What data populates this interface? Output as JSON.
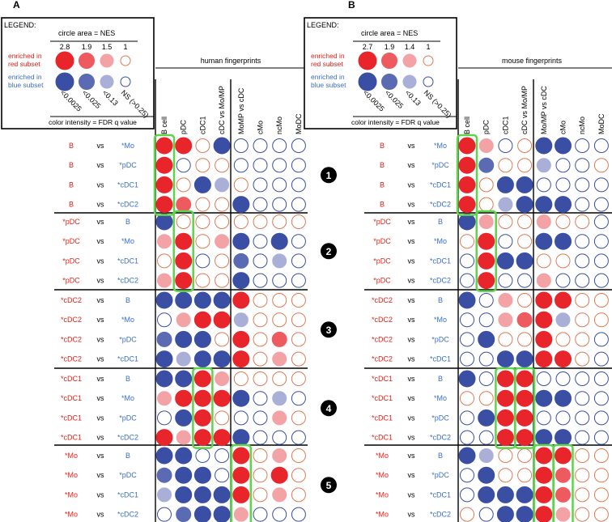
{
  "colors": {
    "red_strong": "#e8252b",
    "red_mid": "#ed5a60",
    "red_light": "#f3a2a5",
    "blue_strong": "#3a4fa3",
    "blue_mid": "#5b6bb3",
    "blue_light": "#a9afd6",
    "open_red": "#e07a55",
    "open_blue": "#3a4fa3",
    "red_text": "#e2231a",
    "blue_text": "#3b6fc4",
    "highlight": "#5ed44a"
  },
  "panels": [
    {
      "letter": "A",
      "legend": {
        "title": "LEGEND:",
        "circle_area_label": "circle area = NES",
        "nes_values": [
          "2.8",
          "1.9",
          "1.5",
          "1"
        ],
        "red_label": [
          "enriched in",
          "red subset"
        ],
        "blue_label": [
          "enriched in",
          "blue subset"
        ],
        "fdr_values": [
          "<0.0025",
          "<0.025",
          "<0.13",
          "NS (>0.25)"
        ],
        "color_label": "color intensity = FDR q value"
      },
      "fingerprint_title": "human fingerprints",
      "columns": [
        "B cell",
        "pDC",
        "cDC1",
        "cDC vs Mo/MP",
        "MoMP vs cDC",
        "cMo",
        "ncMo",
        "MoDC"
      ],
      "groups": [
        {
          "label": "❶",
          "rows": [
            {
              "left": "B",
              "right": "*Mo",
              "cells": [
                "R3",
                "R3",
                "r1",
                "B3",
                "b1",
                "b1",
                "b1",
                "b1"
              ]
            },
            {
              "left": "B",
              "right": "*pDC",
              "cells": [
                "R3",
                "b1",
                "r1",
                "r1",
                "b1",
                "b1",
                "b1",
                "b1"
              ]
            },
            {
              "left": "B",
              "right": "*cDC1",
              "cells": [
                "R3",
                "r1",
                "B3",
                "B1",
                "r1",
                "b1",
                "b1",
                "b1"
              ]
            },
            {
              "left": "B",
              "right": "*cDC2",
              "cells": [
                "R3",
                "R2",
                "r1",
                "r1",
                "B3",
                "b1",
                "b1",
                "b1"
              ]
            }
          ]
        },
        {
          "label": "❷",
          "rows": [
            {
              "left": "*pDC",
              "right": "B",
              "cells": [
                "B3",
                "r1",
                "r1",
                "r1",
                "r1",
                "r1",
                "r1",
                "r1"
              ]
            },
            {
              "left": "*pDC",
              "right": "*Mo",
              "cells": [
                "R1",
                "R3",
                "r1",
                "R1",
                "B3",
                "b1",
                "B3",
                "b1"
              ]
            },
            {
              "left": "*pDC",
              "right": "*cDC1",
              "cells": [
                "r1",
                "R3",
                "b1",
                "r1",
                "B2",
                "b1",
                "B1",
                "b1"
              ]
            },
            {
              "left": "*pDC",
              "right": "*cDC2",
              "cells": [
                "R1",
                "R3",
                "r1",
                "r1",
                "B3",
                "b1",
                "b1",
                "b1"
              ]
            }
          ]
        },
        {
          "label": "❸",
          "rows": [
            {
              "left": "*cDC2",
              "right": "B",
              "cells": [
                "B3",
                "B3",
                "B3",
                "B3",
                "R3",
                "r1",
                "r1",
                "r1"
              ]
            },
            {
              "left": "*cDC2",
              "right": "*Mo",
              "cells": [
                "b1",
                "R1",
                "R3",
                "R3",
                "B1",
                "r1",
                "r1",
                "r1"
              ]
            },
            {
              "left": "*cDC2",
              "right": "*pDC",
              "cells": [
                "B2",
                "B3",
                "B3",
                "r1",
                "R3",
                "r1",
                "R2",
                "r1"
              ]
            },
            {
              "left": "*cDC2",
              "right": "*cDC1",
              "cells": [
                "B3",
                "B1",
                "B3",
                "B3",
                "R3",
                "r1",
                "R1",
                "r1"
              ]
            }
          ]
        },
        {
          "label": "❹",
          "rows": [
            {
              "left": "*cDC1",
              "right": "B",
              "cells": [
                "B3",
                "B3",
                "R3",
                "R1",
                "r1",
                "r1",
                "r1",
                "r1"
              ]
            },
            {
              "left": "*cDC1",
              "right": "*Mo",
              "cells": [
                "R1",
                "R3",
                "R3",
                "R3",
                "B3",
                "b1",
                "B1",
                "b1"
              ]
            },
            {
              "left": "*cDC1",
              "right": "*pDC",
              "cells": [
                "b1",
                "B3",
                "R3",
                "r1",
                "b1",
                "b1",
                "R1",
                "r1"
              ]
            },
            {
              "left": "*cDC1",
              "right": "*cDC2",
              "cells": [
                "R3",
                "R1",
                "R3",
                "R3",
                "B3",
                "b1",
                "b1",
                "b1"
              ]
            }
          ]
        },
        {
          "label": "❺",
          "rows": [
            {
              "left": "*Mo",
              "right": "B",
              "cells": [
                "B3",
                "B3",
                "b1",
                "b1",
                "R3",
                "r1",
                "R1",
                "r1"
              ]
            },
            {
              "left": "*Mo",
              "right": "*pDC",
              "cells": [
                "B2",
                "B3",
                "B3",
                "b1",
                "R3",
                "r1",
                "R3",
                "r1"
              ]
            },
            {
              "left": "*Mo",
              "right": "*cDC1",
              "cells": [
                "B1",
                "B3",
                "B3",
                "B3",
                "R3",
                "r1",
                "R1",
                "r1"
              ]
            },
            {
              "left": "*Mo",
              "right": "*cDC2",
              "cells": [
                "b1",
                "B2",
                "B3",
                "B3",
                "R1",
                "b1",
                "b1",
                "b1"
              ]
            }
          ]
        }
      ],
      "highlights": [
        {
          "group": 0,
          "col": 0
        },
        {
          "group": 1,
          "col": 1
        },
        {
          "group": 3,
          "col": 2
        },
        {
          "group": 4,
          "col": 4
        }
      ]
    },
    {
      "letter": "B",
      "legend": {
        "title": "LEGEND:",
        "circle_area_label": "circle area = NES",
        "nes_values": [
          "2.7",
          "1.9",
          "1.4",
          "1"
        ],
        "red_label": [
          "enriched in",
          "red subset"
        ],
        "blue_label": [
          "enriched in",
          "blue subset"
        ],
        "fdr_values": [
          "<0.0025",
          "<0.025",
          "<0.13",
          "NS (>0.25)"
        ],
        "color_label": "color intensity = FDR q value"
      },
      "fingerprint_title": "mouse fingerprints",
      "columns": [
        "B cell",
        "pDC",
        "cDC1",
        "cDC vs Mo/MP",
        "Mo/MP vs cDC",
        "cMo",
        "ncMo",
        "MoDC"
      ],
      "groups": [
        {
          "label": "",
          "rows": [
            {
              "left": "B",
              "right": "*Mo",
              "cells": [
                "R3",
                "R1",
                "b1",
                "r1",
                "B3",
                "B3",
                "b1",
                "b1"
              ]
            },
            {
              "left": "B",
              "right": "*pDC",
              "cells": [
                "R3",
                "B2",
                "r1",
                "r1",
                "B1",
                "b1",
                "b1",
                "r1"
              ]
            },
            {
              "left": "B",
              "right": "*cDC1",
              "cells": [
                "R3",
                "r1",
                "B3",
                "B3",
                "b1",
                "b1",
                "b1",
                "b1"
              ]
            },
            {
              "left": "B",
              "right": "*cDC2",
              "cells": [
                "R3",
                "r1",
                "B1",
                "B3",
                "B3",
                "B3",
                "b1",
                "b1"
              ]
            }
          ]
        },
        {
          "label": "",
          "rows": [
            {
              "left": "*pDC",
              "right": "B",
              "cells": [
                "B3",
                "R1",
                "r1",
                "r1",
                "R1",
                "r1",
                "r1",
                "b1"
              ]
            },
            {
              "left": "*pDC",
              "right": "*Mo",
              "cells": [
                "r1",
                "R3",
                "b1",
                "r1",
                "B3",
                "B3",
                "b1",
                "b1"
              ]
            },
            {
              "left": "*pDC",
              "right": "*cDC1",
              "cells": [
                "b1",
                "R3",
                "B3",
                "B3",
                "r1",
                "r1",
                "b1",
                "b1"
              ]
            },
            {
              "left": "*pDC",
              "right": "*cDC2",
              "cells": [
                "b1",
                "R3",
                "b1",
                "b1",
                "R1",
                "b1",
                "b1",
                "b1"
              ]
            }
          ]
        },
        {
          "label": "",
          "rows": [
            {
              "left": "*cDC2",
              "right": "B",
              "cells": [
                "B3",
                "b1",
                "R1",
                "r1",
                "R3",
                "R3",
                "r1",
                "r1"
              ]
            },
            {
              "left": "*cDC2",
              "right": "*Mo",
              "cells": [
                "b1",
                "b1",
                "R1",
                "R2",
                "R3",
                "B1",
                "r1",
                "r1"
              ]
            },
            {
              "left": "*cDC2",
              "right": "*pDC",
              "cells": [
                "b1",
                "B3",
                "r1",
                "r1",
                "R3",
                "r1",
                "r1",
                "b1"
              ]
            },
            {
              "left": "*cDC2",
              "right": "*cDC1",
              "cells": [
                "b1",
                "b1",
                "B3",
                "B3",
                "R3",
                "R3",
                "r1",
                "b1"
              ]
            }
          ]
        },
        {
          "label": "",
          "rows": [
            {
              "left": "*cDC1",
              "right": "B",
              "cells": [
                "B3",
                "b1",
                "R3",
                "R3",
                "b1",
                "b1",
                "b1",
                "b1"
              ]
            },
            {
              "left": "*cDC1",
              "right": "*Mo",
              "cells": [
                "r1",
                "r1",
                "R3",
                "R3",
                "B3",
                "B3",
                "b1",
                "b1"
              ]
            },
            {
              "left": "*cDC1",
              "right": "*pDC",
              "cells": [
                "b1",
                "B3",
                "R3",
                "R3",
                "b1",
                "b1",
                "b1",
                "b1"
              ]
            },
            {
              "left": "*cDC1",
              "right": "*cDC2",
              "cells": [
                "b1",
                "b1",
                "R3",
                "R3",
                "B3",
                "B3",
                "b1",
                "b1"
              ]
            }
          ]
        },
        {
          "label": "",
          "rows": [
            {
              "left": "*Mo",
              "right": "B",
              "cells": [
                "B3",
                "B1",
                "r1",
                "r1",
                "R3",
                "R3",
                "r1",
                "r1"
              ]
            },
            {
              "left": "*Mo",
              "right": "*pDC",
              "cells": [
                "b1",
                "B3",
                "r1",
                "r1",
                "R3",
                "R2",
                "r1",
                "r1"
              ]
            },
            {
              "left": "*Mo",
              "right": "*cDC1",
              "cells": [
                "b1",
                "B3",
                "B3",
                "B3",
                "R3",
                "R2",
                "r1",
                "r1"
              ]
            },
            {
              "left": "*Mo",
              "right": "*cDC2",
              "cells": [
                "r1",
                "b1",
                "B3",
                "B3",
                "R3",
                "R1",
                "r1",
                "r1"
              ]
            }
          ]
        }
      ],
      "highlights": [
        {
          "group": 0,
          "col": 0
        },
        {
          "group": 1,
          "col": 1
        },
        {
          "group": 3,
          "col": 2
        },
        {
          "group": 3,
          "col": 3
        },
        {
          "group": 4,
          "col": 4
        },
        {
          "group": 4,
          "col": 5
        }
      ]
    }
  ]
}
